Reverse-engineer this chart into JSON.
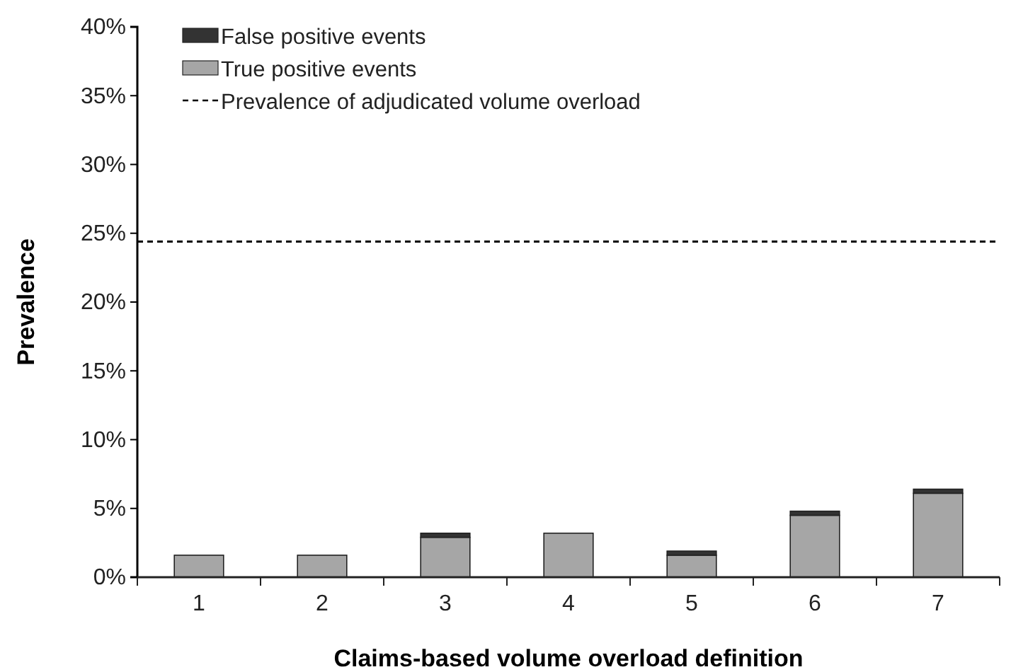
{
  "chart_data": {
    "type": "bar",
    "stacked": true,
    "xlabel": "Claims-based volume overload definition",
    "ylabel": "Prevalence",
    "categories": [
      "1",
      "2",
      "3",
      "4",
      "5",
      "6",
      "7"
    ],
    "series": [
      {
        "name": "True positive events",
        "color": "#a6a6a6",
        "values": [
          1.6,
          1.6,
          2.9,
          3.2,
          1.6,
          4.5,
          6.1
        ]
      },
      {
        "name": "False positive events",
        "color": "#333333",
        "values": [
          0,
          0,
          0.3,
          0,
          0.3,
          0.3,
          0.3
        ]
      }
    ],
    "ylim": [
      0,
      40
    ],
    "yticks": [
      {
        "value": 0,
        "label": "0%"
      },
      {
        "value": 5,
        "label": "5%"
      },
      {
        "value": 10,
        "label": "10%"
      },
      {
        "value": 15,
        "label": "15%"
      },
      {
        "value": 20,
        "label": "20%"
      },
      {
        "value": 25,
        "label": "25%"
      },
      {
        "value": 30,
        "label": "30%"
      },
      {
        "value": 35,
        "label": "35%"
      },
      {
        "value": 40,
        "label": "40%"
      }
    ],
    "ref_lines": [
      {
        "axis": "y",
        "value": 24.4,
        "label": "Prevalence of adjudicated volume overload",
        "color": "#000000",
        "line_style": "dashed"
      }
    ],
    "legend": "top left",
    "grid": false
  }
}
